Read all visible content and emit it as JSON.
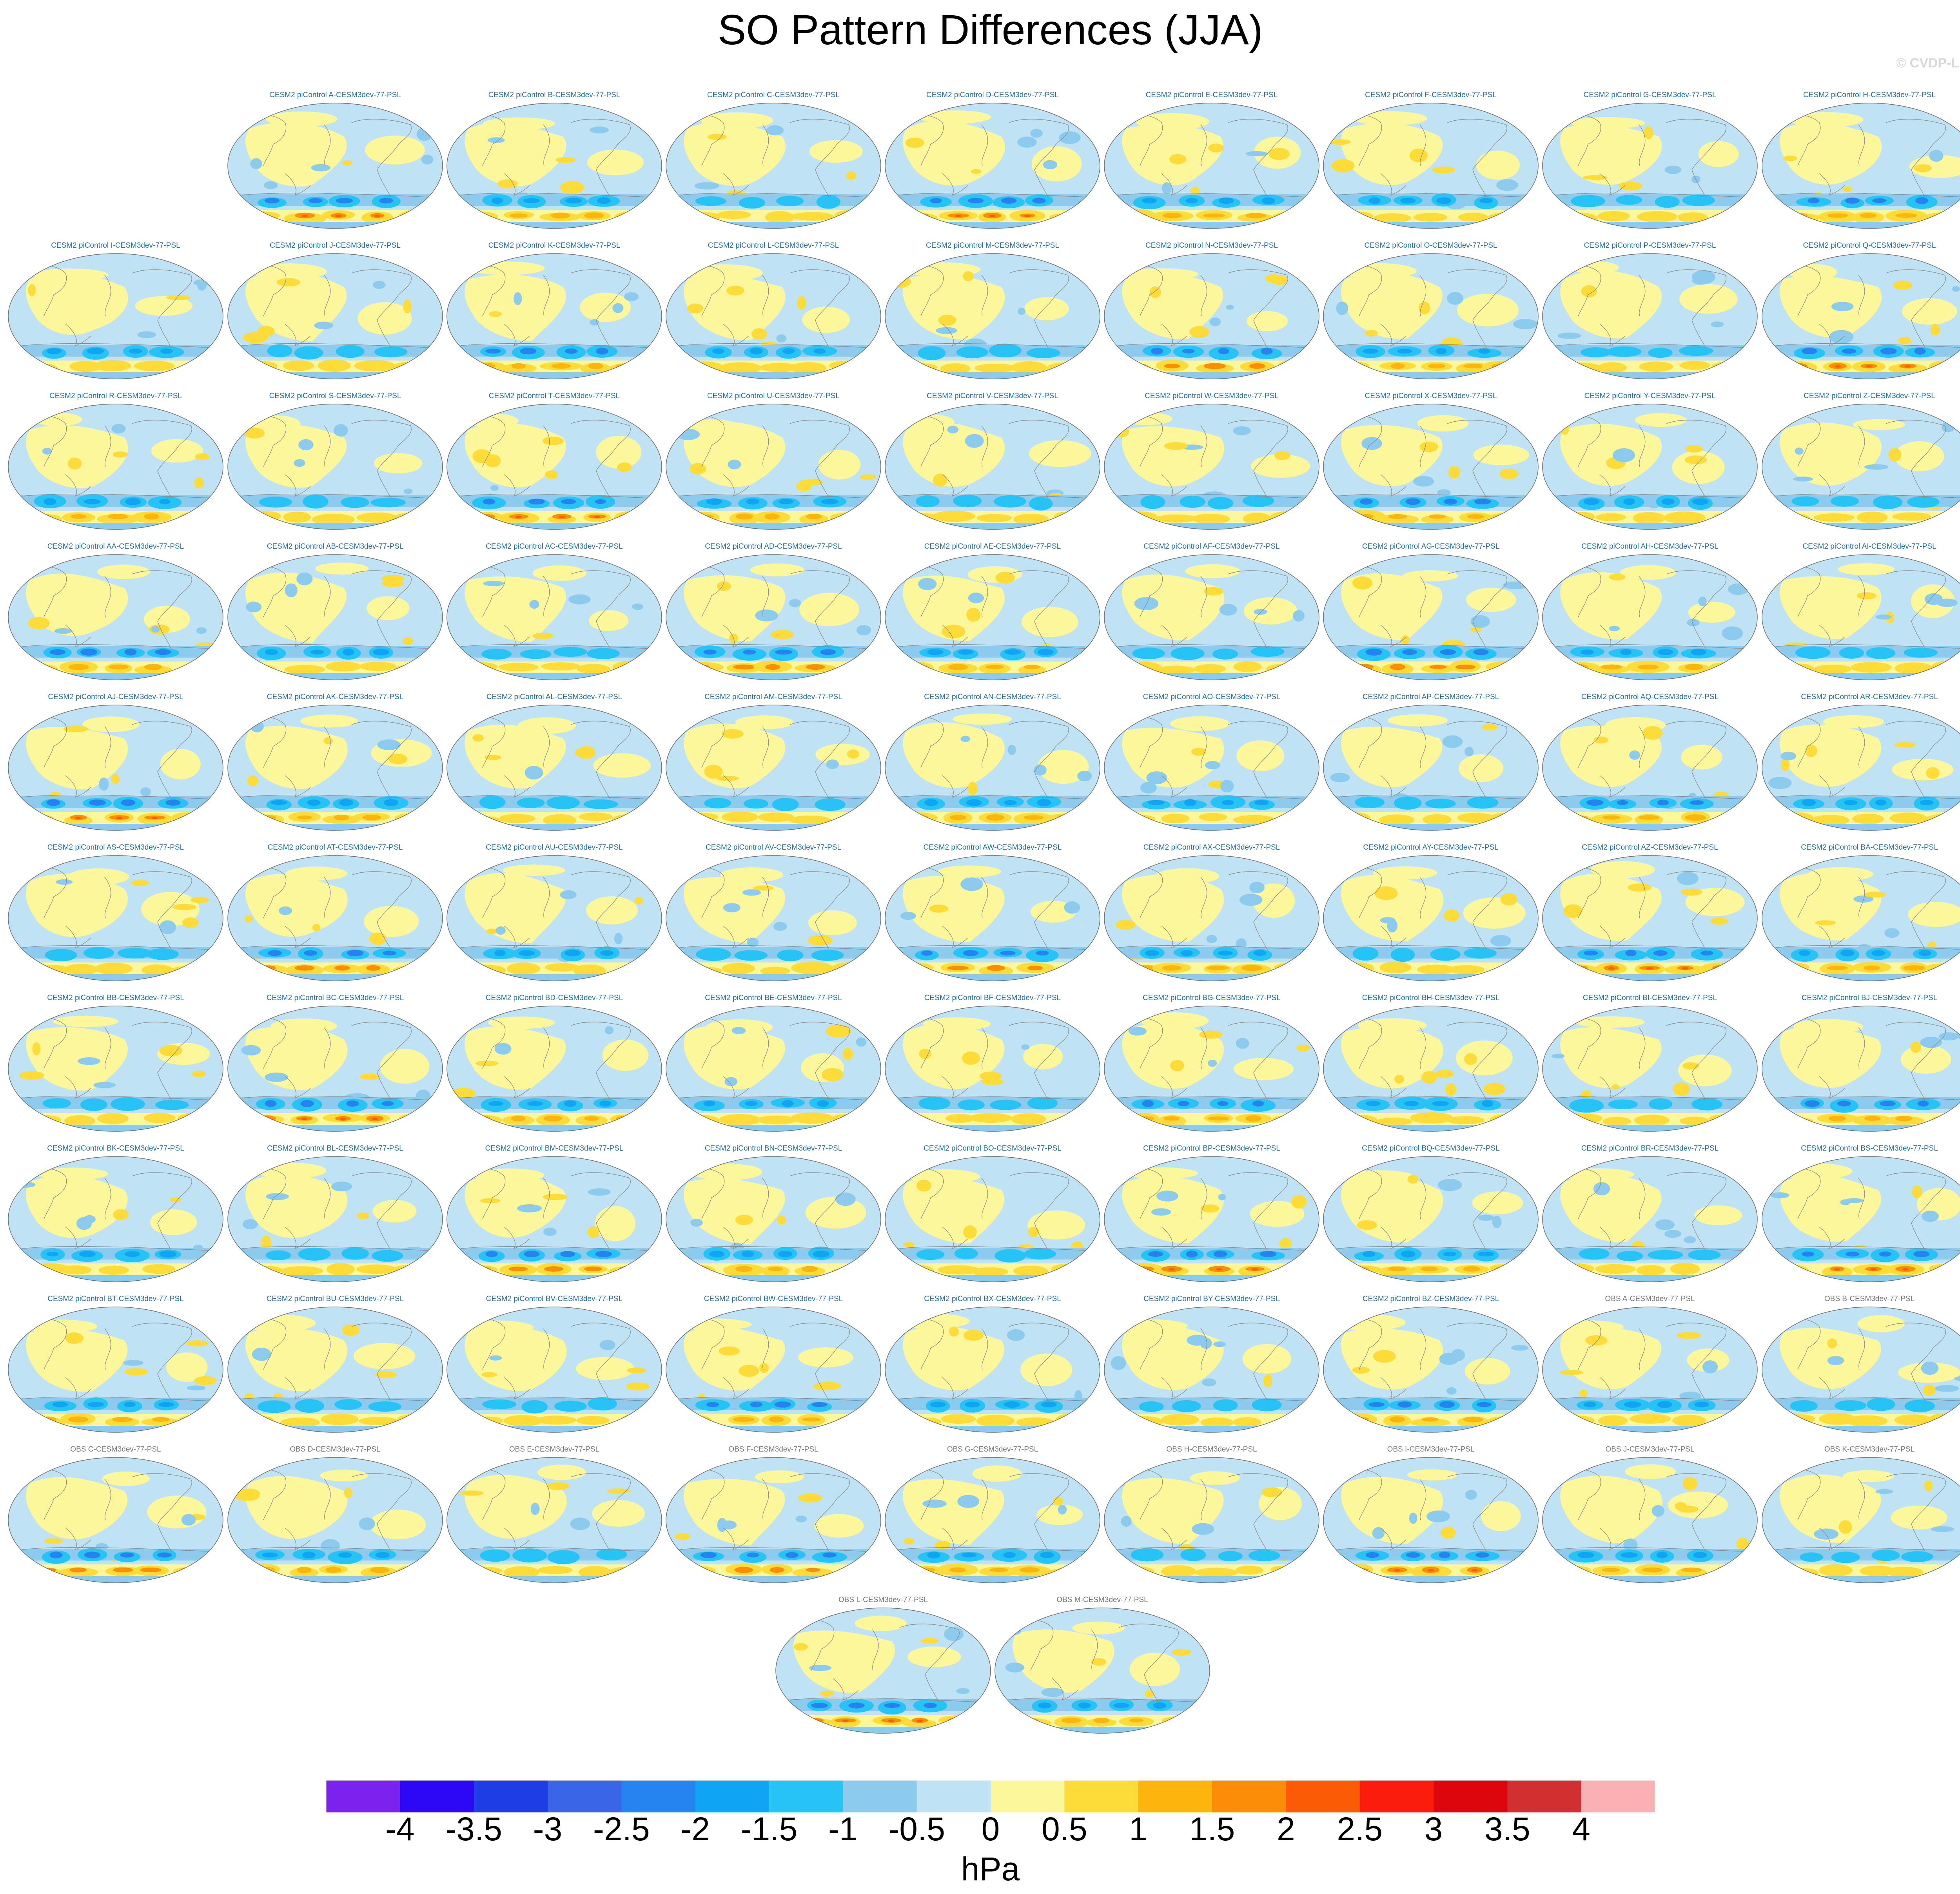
{
  "title": "SO Pattern Differences (JJA)",
  "watermark": "© CVDP-LE",
  "units": "hPa",
  "colorbar": {
    "labels": [
      "-4",
      "-3.5",
      "-3",
      "-2.5",
      "-2",
      "-1.5",
      "-1",
      "-0.5",
      "0",
      "0.5",
      "1",
      "1.5",
      "2",
      "2.5",
      "3",
      "3.5",
      "4"
    ],
    "colors": [
      "#7b22ef",
      "#2b08f5",
      "#1f3de6",
      "#3a66e6",
      "#2583f0",
      "#10a4f4",
      "#26c3f7",
      "#8ccbee",
      "#bfe2f4",
      "#fdf79c",
      "#fddb38",
      "#fbb50d",
      "#fc8d06",
      "#fc5b05",
      "#fc1c0b",
      "#dc050b",
      "#d12f2f",
      "#fbb0b4"
    ]
  },
  "panels": [
    {
      "label": "CESM2 piControl A-CESM3dev-77-PSL",
      "group": "cesm"
    },
    {
      "label": "CESM2 piControl B-CESM3dev-77-PSL",
      "group": "cesm"
    },
    {
      "label": "CESM2 piControl C-CESM3dev-77-PSL",
      "group": "cesm"
    },
    {
      "label": "CESM2 piControl D-CESM3dev-77-PSL",
      "group": "cesm"
    },
    {
      "label": "CESM2 piControl E-CESM3dev-77-PSL",
      "group": "cesm"
    },
    {
      "label": "CESM2 piControl F-CESM3dev-77-PSL",
      "group": "cesm"
    },
    {
      "label": "CESM2 piControl G-CESM3dev-77-PSL",
      "group": "cesm"
    },
    {
      "label": "CESM2 piControl H-CESM3dev-77-PSL",
      "group": "cesm"
    },
    {
      "label": "CESM2 piControl I-CESM3dev-77-PSL",
      "group": "cesm"
    },
    {
      "label": "CESM2 piControl J-CESM3dev-77-PSL",
      "group": "cesm"
    },
    {
      "label": "CESM2 piControl K-CESM3dev-77-PSL",
      "group": "cesm"
    },
    {
      "label": "CESM2 piControl L-CESM3dev-77-PSL",
      "group": "cesm"
    },
    {
      "label": "CESM2 piControl M-CESM3dev-77-PSL",
      "group": "cesm"
    },
    {
      "label": "CESM2 piControl N-CESM3dev-77-PSL",
      "group": "cesm"
    },
    {
      "label": "CESM2 piControl O-CESM3dev-77-PSL",
      "group": "cesm"
    },
    {
      "label": "CESM2 piControl P-CESM3dev-77-PSL",
      "group": "cesm"
    },
    {
      "label": "CESM2 piControl Q-CESM3dev-77-PSL",
      "group": "cesm"
    },
    {
      "label": "CESM2 piControl R-CESM3dev-77-PSL",
      "group": "cesm"
    },
    {
      "label": "CESM2 piControl S-CESM3dev-77-PSL",
      "group": "cesm"
    },
    {
      "label": "CESM2 piControl T-CESM3dev-77-PSL",
      "group": "cesm"
    },
    {
      "label": "CESM2 piControl U-CESM3dev-77-PSL",
      "group": "cesm"
    },
    {
      "label": "CESM2 piControl V-CESM3dev-77-PSL",
      "group": "cesm"
    },
    {
      "label": "CESM2 piControl W-CESM3dev-77-PSL",
      "group": "cesm"
    },
    {
      "label": "CESM2 piControl X-CESM3dev-77-PSL",
      "group": "cesm"
    },
    {
      "label": "CESM2 piControl Y-CESM3dev-77-PSL",
      "group": "cesm"
    },
    {
      "label": "CESM2 piControl Z-CESM3dev-77-PSL",
      "group": "cesm"
    },
    {
      "label": "CESM2 piControl AA-CESM3dev-77-PSL",
      "group": "cesm"
    },
    {
      "label": "CESM2 piControl AB-CESM3dev-77-PSL",
      "group": "cesm"
    },
    {
      "label": "CESM2 piControl AC-CESM3dev-77-PSL",
      "group": "cesm"
    },
    {
      "label": "CESM2 piControl AD-CESM3dev-77-PSL",
      "group": "cesm"
    },
    {
      "label": "CESM2 piControl AE-CESM3dev-77-PSL",
      "group": "cesm"
    },
    {
      "label": "CESM2 piControl AF-CESM3dev-77-PSL",
      "group": "cesm"
    },
    {
      "label": "CESM2 piControl AG-CESM3dev-77-PSL",
      "group": "cesm"
    },
    {
      "label": "CESM2 piControl AH-CESM3dev-77-PSL",
      "group": "cesm"
    },
    {
      "label": "CESM2 piControl AI-CESM3dev-77-PSL",
      "group": "cesm"
    },
    {
      "label": "CESM2 piControl AJ-CESM3dev-77-PSL",
      "group": "cesm"
    },
    {
      "label": "CESM2 piControl AK-CESM3dev-77-PSL",
      "group": "cesm"
    },
    {
      "label": "CESM2 piControl AL-CESM3dev-77-PSL",
      "group": "cesm"
    },
    {
      "label": "CESM2 piControl AM-CESM3dev-77-PSL",
      "group": "cesm"
    },
    {
      "label": "CESM2 piControl AN-CESM3dev-77-PSL",
      "group": "cesm"
    },
    {
      "label": "CESM2 piControl AO-CESM3dev-77-PSL",
      "group": "cesm"
    },
    {
      "label": "CESM2 piControl AP-CESM3dev-77-PSL",
      "group": "cesm"
    },
    {
      "label": "CESM2 piControl AQ-CESM3dev-77-PSL",
      "group": "cesm"
    },
    {
      "label": "CESM2 piControl AR-CESM3dev-77-PSL",
      "group": "cesm"
    },
    {
      "label": "CESM2 piControl AS-CESM3dev-77-PSL",
      "group": "cesm"
    },
    {
      "label": "CESM2 piControl AT-CESM3dev-77-PSL",
      "group": "cesm"
    },
    {
      "label": "CESM2 piControl AU-CESM3dev-77-PSL",
      "group": "cesm"
    },
    {
      "label": "CESM2 piControl AV-CESM3dev-77-PSL",
      "group": "cesm"
    },
    {
      "label": "CESM2 piControl AW-CESM3dev-77-PSL",
      "group": "cesm"
    },
    {
      "label": "CESM2 piControl AX-CESM3dev-77-PSL",
      "group": "cesm"
    },
    {
      "label": "CESM2 piControl AY-CESM3dev-77-PSL",
      "group": "cesm"
    },
    {
      "label": "CESM2 piControl AZ-CESM3dev-77-PSL",
      "group": "cesm"
    },
    {
      "label": "CESM2 piControl BA-CESM3dev-77-PSL",
      "group": "cesm"
    },
    {
      "label": "CESM2 piControl BB-CESM3dev-77-PSL",
      "group": "cesm"
    },
    {
      "label": "CESM2 piControl BC-CESM3dev-77-PSL",
      "group": "cesm"
    },
    {
      "label": "CESM2 piControl BD-CESM3dev-77-PSL",
      "group": "cesm"
    },
    {
      "label": "CESM2 piControl BE-CESM3dev-77-PSL",
      "group": "cesm"
    },
    {
      "label": "CESM2 piControl BF-CESM3dev-77-PSL",
      "group": "cesm"
    },
    {
      "label": "CESM2 piControl BG-CESM3dev-77-PSL",
      "group": "cesm"
    },
    {
      "label": "CESM2 piControl BH-CESM3dev-77-PSL",
      "group": "cesm"
    },
    {
      "label": "CESM2 piControl BI-CESM3dev-77-PSL",
      "group": "cesm"
    },
    {
      "label": "CESM2 piControl BJ-CESM3dev-77-PSL",
      "group": "cesm"
    },
    {
      "label": "CESM2 piControl BK-CESM3dev-77-PSL",
      "group": "cesm"
    },
    {
      "label": "CESM2 piControl BL-CESM3dev-77-PSL",
      "group": "cesm"
    },
    {
      "label": "CESM2 piControl BM-CESM3dev-77-PSL",
      "group": "cesm"
    },
    {
      "label": "CESM2 piControl BN-CESM3dev-77-PSL",
      "group": "cesm"
    },
    {
      "label": "CESM2 piControl BO-CESM3dev-77-PSL",
      "group": "cesm"
    },
    {
      "label": "CESM2 piControl BP-CESM3dev-77-PSL",
      "group": "cesm"
    },
    {
      "label": "CESM2 piControl BQ-CESM3dev-77-PSL",
      "group": "cesm"
    },
    {
      "label": "CESM2 piControl BR-CESM3dev-77-PSL",
      "group": "cesm"
    },
    {
      "label": "CESM2 piControl BS-CESM3dev-77-PSL",
      "group": "cesm"
    },
    {
      "label": "CESM2 piControl BT-CESM3dev-77-PSL",
      "group": "cesm"
    },
    {
      "label": "CESM2 piControl BU-CESM3dev-77-PSL",
      "group": "cesm"
    },
    {
      "label": "CESM2 piControl BV-CESM3dev-77-PSL",
      "group": "cesm"
    },
    {
      "label": "CESM2 piControl BW-CESM3dev-77-PSL",
      "group": "cesm"
    },
    {
      "label": "CESM2 piControl BX-CESM3dev-77-PSL",
      "group": "cesm"
    },
    {
      "label": "CESM2 piControl BY-CESM3dev-77-PSL",
      "group": "cesm"
    },
    {
      "label": "CESM2 piControl BZ-CESM3dev-77-PSL",
      "group": "cesm"
    },
    {
      "label": "OBS A-CESM3dev-77-PSL",
      "group": "obs"
    },
    {
      "label": "OBS B-CESM3dev-77-PSL",
      "group": "obs"
    },
    {
      "label": "OBS C-CESM3dev-77-PSL",
      "group": "obs"
    },
    {
      "label": "OBS D-CESM3dev-77-PSL",
      "group": "obs"
    },
    {
      "label": "OBS E-CESM3dev-77-PSL",
      "group": "obs"
    },
    {
      "label": "OBS F-CESM3dev-77-PSL",
      "group": "obs"
    },
    {
      "label": "OBS G-CESM3dev-77-PSL",
      "group": "obs"
    },
    {
      "label": "OBS H-CESM3dev-77-PSL",
      "group": "obs"
    },
    {
      "label": "OBS I-CESM3dev-77-PSL",
      "group": "obs"
    },
    {
      "label": "OBS J-CESM3dev-77-PSL",
      "group": "obs"
    },
    {
      "label": "OBS K-CESM3dev-77-PSL",
      "group": "obs"
    },
    {
      "label": "OBS L-CESM3dev-77-PSL",
      "group": "obs"
    },
    {
      "label": "OBS M-CESM3dev-77-PSL",
      "group": "obs"
    }
  ]
}
